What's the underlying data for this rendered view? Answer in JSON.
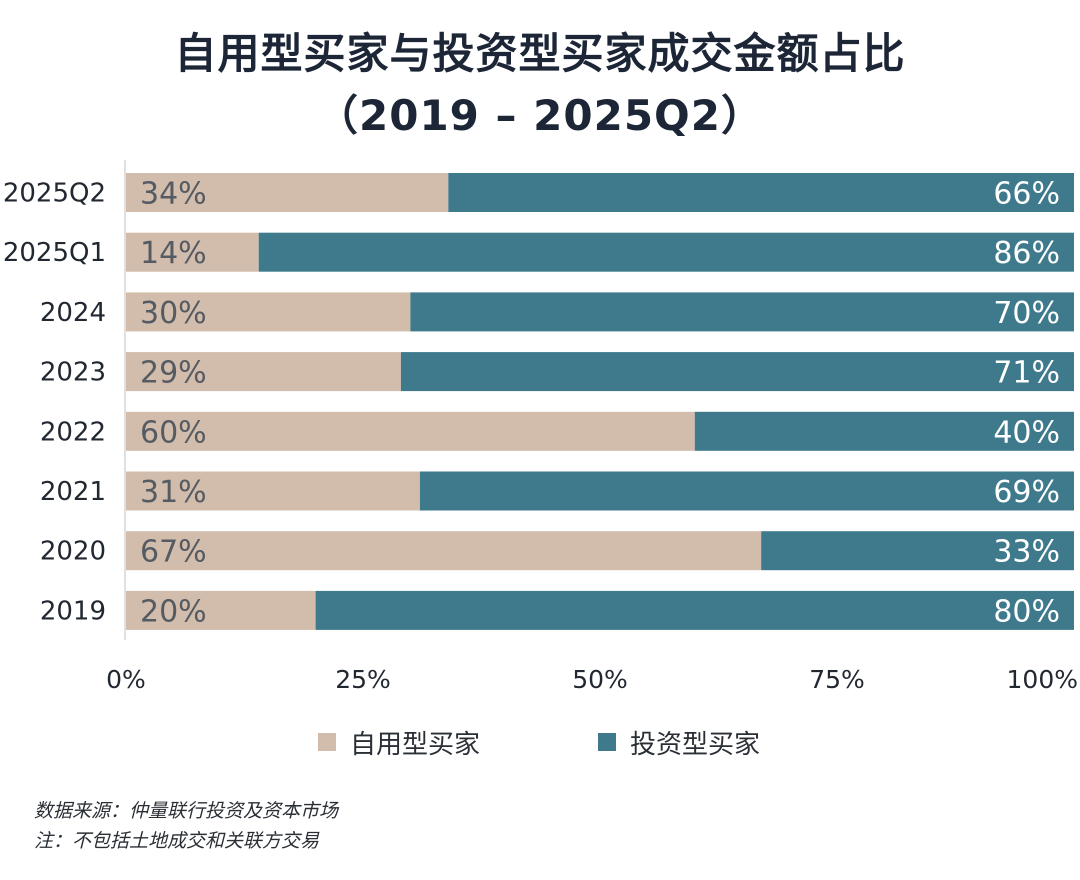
{
  "title": {
    "line1": "自用型买家与投资型买家成交金额占比",
    "line2": "（2019 – 2025Q2）"
  },
  "colors": {
    "owner": "#d2bcab",
    "investor": "#3e7a8c",
    "label_dark": "#555b62",
    "label_light": "#ffffff",
    "axis_text": "#222831"
  },
  "chart_data": {
    "type": "bar",
    "orientation": "horizontal",
    "stacked": true,
    "categories": [
      "2025Q2",
      "2025Q1",
      "2024",
      "2023",
      "2022",
      "2021",
      "2020",
      "2019"
    ],
    "series": [
      {
        "name": "自用型买家",
        "values": [
          34,
          14,
          30,
          29,
          60,
          31,
          67,
          20
        ]
      },
      {
        "name": "投资型买家",
        "values": [
          66,
          86,
          70,
          71,
          40,
          69,
          33,
          80
        ]
      }
    ],
    "xlim": [
      0,
      100
    ],
    "xticks": [
      "0%",
      "25%",
      "50%",
      "75%",
      "100%"
    ],
    "value_suffix": "%",
    "grid": false,
    "legend_position": "bottom"
  },
  "legend": {
    "owner_label": "自用型买家",
    "investor_label": "投资型买家"
  },
  "source": {
    "line1": "数据来源：仲量联行投资及资本市场",
    "line2": "注：不包括土地成交和关联方交易"
  }
}
